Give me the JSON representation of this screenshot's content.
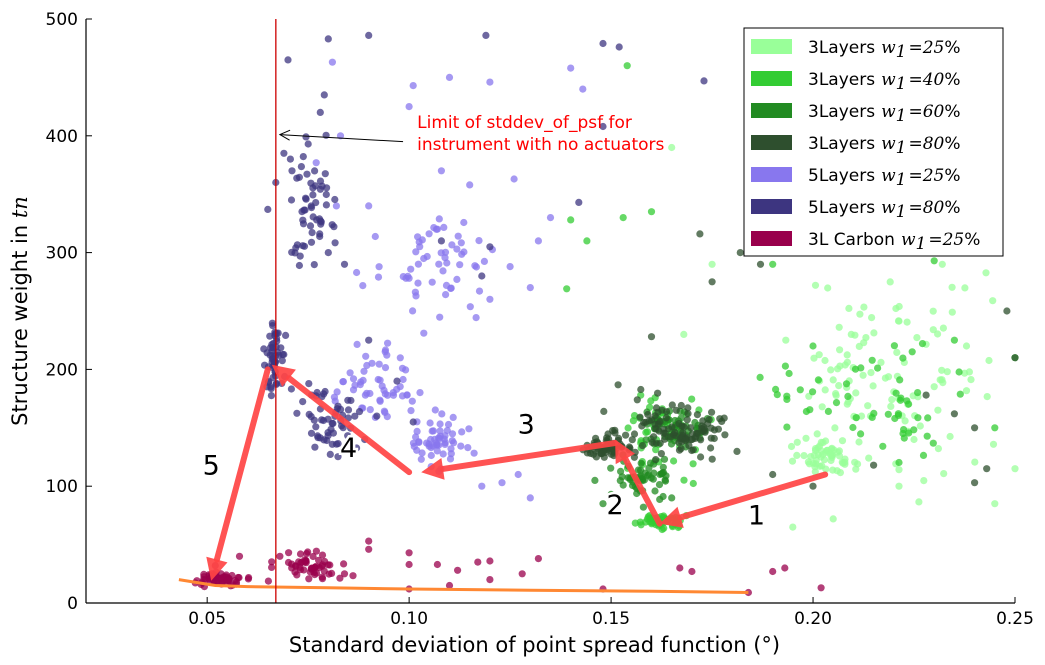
{
  "chart_data": {
    "type": "scatter",
    "title": "",
    "xlabel": "Standard deviation of point spread function (°)",
    "ylabel": "Structure weight in",
    "ylabel_var": "tn",
    "xlim": [
      0.02,
      0.25
    ],
    "ylim": [
      0,
      500
    ],
    "x_ticks": [
      {
        "v": 0.05,
        "label": "0.05"
      },
      {
        "v": 0.1,
        "label": "0.10"
      },
      {
        "v": 0.15,
        "label": "0.15"
      },
      {
        "v": 0.2,
        "label": "0.20"
      },
      {
        "v": 0.25,
        "label": "0.25"
      }
    ],
    "y_ticks": [
      {
        "v": 0,
        "label": "0"
      },
      {
        "v": 100,
        "label": "100"
      },
      {
        "v": 200,
        "label": "200"
      },
      {
        "v": 300,
        "label": "300"
      },
      {
        "v": 400,
        "label": "400"
      },
      {
        "v": 500,
        "label": "500"
      }
    ],
    "grid": false,
    "legend_position": "top-right",
    "series": [
      {
        "name": "3Layers",
        "weight": "25%",
        "color": "#99ff99",
        "clusters": [
          {
            "x": [
              0.185,
              0.23
            ],
            "y": [
              80,
              300
            ]
          },
          {
            "x": [
              0.192,
              0.215
            ],
            "y": [
              105,
              145
            ]
          },
          {
            "x": [
              0.205,
              0.25
            ],
            "y": [
              80,
              330
            ]
          }
        ],
        "points": [
          [
            0.185,
            440
          ],
          [
            0.165,
            390
          ],
          [
            0.195,
            305
          ],
          [
            0.22,
            350
          ],
          [
            0.232,
            290
          ],
          [
            0.25,
            115
          ],
          [
            0.245,
            85
          ],
          [
            0.195,
            65
          ],
          [
            0.205,
            72
          ],
          [
            0.175,
            290
          ],
          [
            0.168,
            230
          ],
          [
            0.212,
            160
          ],
          [
            0.225,
            140
          ],
          [
            0.238,
            220
          ]
        ]
      },
      {
        "name": "3Layers",
        "weight": "40%",
        "color": "#33cc33",
        "clusters": [
          {
            "x": [
              0.148,
              0.178
            ],
            "y": [
              95,
              200
            ]
          },
          {
            "x": [
              0.155,
              0.17
            ],
            "y": [
              60,
              80
            ]
          },
          {
            "x": [
              0.18,
              0.25
            ],
            "y": [
              100,
              240
            ]
          }
        ],
        "points": [
          [
            0.154,
            460
          ],
          [
            0.14,
            328
          ],
          [
            0.144,
            310
          ],
          [
            0.139,
            269
          ],
          [
            0.153,
            330
          ],
          [
            0.16,
            335
          ],
          [
            0.2,
            220
          ],
          [
            0.23,
            293
          ],
          [
            0.235,
            225
          ],
          [
            0.25,
            210
          ],
          [
            0.245,
            150
          ],
          [
            0.19,
            290
          ],
          [
            0.185,
            335
          ]
        ]
      },
      {
        "name": "3Layers",
        "weight": "60%",
        "color": "#228b22",
        "clusters": [
          {
            "x": [
              0.148,
              0.168
            ],
            "y": [
              85,
              130
            ]
          },
          {
            "x": [
              0.152,
              0.178
            ],
            "y": [
              125,
              170
            ]
          }
        ],
        "points": [
          [
            0.148,
            85
          ],
          [
            0.15,
            93
          ],
          [
            0.146,
            105
          ],
          [
            0.158,
            82
          ],
          [
            0.165,
            90
          ]
        ]
      },
      {
        "name": "3Layers",
        "weight": "80%",
        "color": "#2e4f2e",
        "clusters": [
          {
            "x": [
              0.138,
              0.185
            ],
            "y": [
              100,
              200
            ]
          },
          {
            "x": [
              0.14,
              0.158
            ],
            "y": [
              120,
              145
            ]
          },
          {
            "x": [
              0.155,
              0.182
            ],
            "y": [
              120,
              170
            ]
          }
        ],
        "points": [
          [
            0.172,
            316
          ],
          [
            0.187,
            290
          ],
          [
            0.182,
            300
          ],
          [
            0.175,
            275
          ],
          [
            0.16,
            228
          ],
          [
            0.24,
            150
          ],
          [
            0.243,
            115
          ],
          [
            0.24,
            103
          ],
          [
            0.248,
            250
          ],
          [
            0.25,
            210
          ],
          [
            0.235,
            162
          ],
          [
            0.228,
            178
          ],
          [
            0.2,
            100
          ],
          [
            0.215,
            118
          ],
          [
            0.19,
            110
          ]
        ]
      },
      {
        "name": "5Layers",
        "weight": "25%",
        "color": "#8877ee",
        "clusters": [
          {
            "x": [
              0.098,
              0.118
            ],
            "y": [
              108,
              170
            ]
          },
          {
            "x": [
              0.078,
              0.105
            ],
            "y": [
              140,
              240
            ]
          },
          {
            "x": [
              0.085,
              0.13
            ],
            "y": [
              220,
              360
            ]
          }
        ],
        "points": [
          [
            0.081,
            463
          ],
          [
            0.1,
            425
          ],
          [
            0.101,
            443
          ],
          [
            0.11,
            450
          ],
          [
            0.12,
            446
          ],
          [
            0.14,
            458
          ],
          [
            0.143,
            440
          ],
          [
            0.126,
            363
          ],
          [
            0.108,
            370
          ],
          [
            0.115,
            358
          ],
          [
            0.09,
            340
          ],
          [
            0.082,
            340
          ],
          [
            0.087,
            283
          ],
          [
            0.1,
            278
          ],
          [
            0.12,
            260
          ],
          [
            0.13,
            270
          ],
          [
            0.132,
            310
          ],
          [
            0.125,
            288
          ],
          [
            0.135,
            330
          ],
          [
            0.118,
            100
          ],
          [
            0.123,
            103
          ],
          [
            0.127,
            110
          ],
          [
            0.13,
            90
          ],
          [
            0.107,
            320
          ],
          [
            0.083,
            400
          ],
          [
            0.077,
            377
          ]
        ]
      },
      {
        "name": "5Layers",
        "weight": "80%",
        "color": "#3d3580",
        "clusters": [
          {
            "x": [
              0.063,
              0.07
            ],
            "y": [
              160,
              260
            ]
          },
          {
            "x": [
              0.069,
              0.092
            ],
            "y": [
              110,
              200
            ]
          },
          {
            "x": [
              0.068,
              0.085
            ],
            "y": [
              260,
              420
            ]
          }
        ],
        "points": [
          [
            0.08,
            483
          ],
          [
            0.07,
            465
          ],
          [
            0.09,
            486
          ],
          [
            0.119,
            486
          ],
          [
            0.148,
            479
          ],
          [
            0.152,
            476
          ],
          [
            0.173,
            447
          ],
          [
            0.148,
            408
          ],
          [
            0.079,
            435
          ],
          [
            0.078,
            420
          ],
          [
            0.065,
            337
          ],
          [
            0.067,
            360
          ],
          [
            0.069,
            385
          ],
          [
            0.075,
            393
          ],
          [
            0.071,
            370
          ],
          [
            0.08,
            300
          ],
          [
            0.084,
            290
          ],
          [
            0.09,
            225
          ],
          [
            0.097,
            190
          ],
          [
            0.092,
            160
          ],
          [
            0.089,
            140
          ],
          [
            0.101,
            155
          ],
          [
            0.108,
            310
          ],
          [
            0.12,
            305
          ],
          [
            0.118,
            280
          ],
          [
            0.142,
            343
          ]
        ]
      },
      {
        "name": "3L Carbon",
        "weight": "25%",
        "color": "#99004c",
        "clusters": [
          {
            "x": [
              0.044,
              0.062
            ],
            "y": [
              12,
              28
            ]
          },
          {
            "x": [
              0.062,
              0.09
            ],
            "y": [
              14,
              48
            ]
          }
        ],
        "points": [
          [
            0.052,
            32
          ],
          [
            0.058,
            40
          ],
          [
            0.068,
            40
          ],
          [
            0.09,
            53
          ],
          [
            0.09,
            46
          ],
          [
            0.1,
            43
          ],
          [
            0.1,
            12
          ],
          [
            0.1,
            33
          ],
          [
            0.107,
            33
          ],
          [
            0.112,
            28
          ],
          [
            0.117,
            35
          ],
          [
            0.12,
            36
          ],
          [
            0.128,
            25
          ],
          [
            0.132,
            38
          ],
          [
            0.148,
            12
          ],
          [
            0.167,
            30
          ],
          [
            0.17,
            27
          ],
          [
            0.184,
            9
          ],
          [
            0.19,
            27
          ],
          [
            0.193,
            30
          ],
          [
            0.202,
            13
          ],
          [
            0.11,
            15
          ],
          [
            0.12,
            20
          ]
        ]
      }
    ],
    "trend_line": {
      "color": "#ff8833",
      "x": [
        0.043,
        0.052,
        0.06,
        0.08,
        0.1,
        0.13,
        0.16,
        0.184
      ],
      "y": [
        20,
        15,
        14,
        13,
        12,
        11,
        10,
        9
      ]
    },
    "vertical_line": {
      "x": 0.067,
      "color": "#cc0000"
    },
    "annotation": {
      "lines": [
        "Limit of stddev_of_psf for",
        "instrument with no actuators"
      ],
      "text_x": 0.1,
      "text_y": 405,
      "arrow_to_x": 0.068,
      "arrow_to_y": 401,
      "arrow_from_x": 0.0985,
      "arrow_from_y": 395,
      "color": "#ff0000"
    },
    "path_arrows": [
      {
        "label": "1",
        "from": [
          0.203,
          110
        ],
        "to": [
          0.162,
          68
        ],
        "label_at": [
          0.186,
          67
        ]
      },
      {
        "label": "2",
        "from": [
          0.162,
          68
        ],
        "to": [
          0.151,
          140
        ],
        "label_at": [
          0.151,
          76
        ]
      },
      {
        "label": "3",
        "from": [
          0.151,
          137
        ],
        "to": [
          0.103,
          112
        ],
        "label_at": [
          0.129,
          145
        ]
      },
      {
        "label": "4",
        "from": [
          0.1,
          112
        ],
        "to": [
          0.066,
          204
        ],
        "label_at": [
          0.085,
          125
        ]
      },
      {
        "label": "5",
        "from": [
          0.065,
          200
        ],
        "to": [
          0.051,
          19
        ],
        "label_at": [
          0.051,
          110
        ]
      }
    ]
  }
}
